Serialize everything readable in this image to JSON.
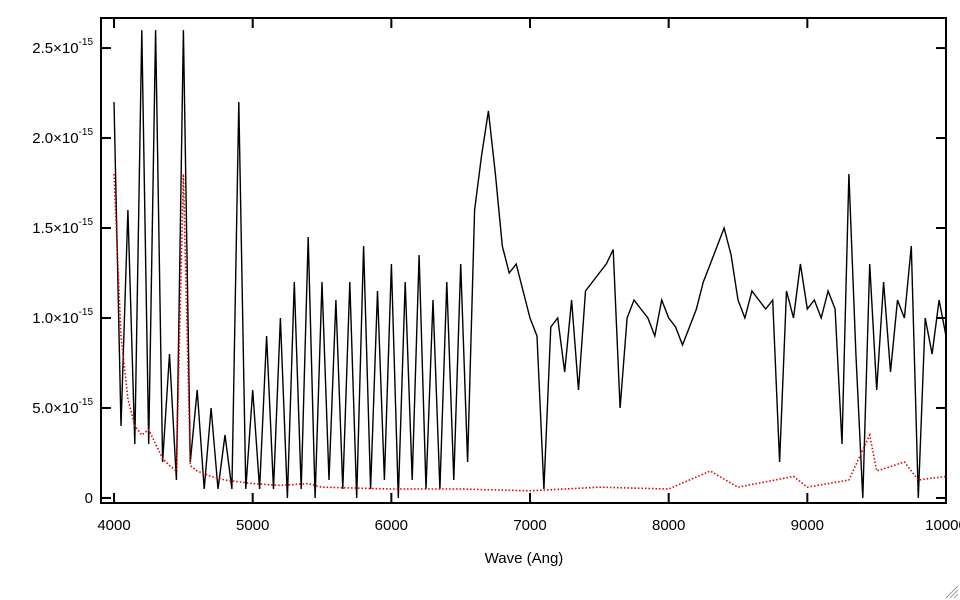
{
  "chart_data": {
    "type": "line",
    "xlabel": "Wave (Ang)",
    "xlim": [
      3906,
      10000
    ],
    "xticks": [
      4000,
      5000,
      6000,
      7000,
      8000,
      9000,
      10000
    ],
    "ylim": [
      -2.8e-17,
      2.667e-15
    ],
    "yticks": [
      0,
      {
        "value": 5e-16,
        "label": "5.0×10",
        "exponent": "-15"
      },
      {
        "value": 1e-15,
        "label": "1.0×10",
        "exponent": "-15"
      },
      {
        "value": 1.5e-15,
        "label": "1.5×10",
        "exponent": "-15"
      },
      {
        "value": 2e-15,
        "label": "2.0×10",
        "exponent": "-15"
      },
      {
        "value": 2.5e-15,
        "label": "2.5×10",
        "exponent": "-15"
      }
    ],
    "series": [
      {
        "color": "#000000",
        "linestyle": "solid",
        "x": [
          4000,
          4050,
          4100,
          4150,
          4200,
          4250,
          4300,
          4350,
          4400,
          4450,
          4500,
          4550,
          4600,
          4650,
          4700,
          4750,
          4800,
          4850,
          4900,
          4950,
          5000,
          5050,
          5100,
          5150,
          5200,
          5250,
          5300,
          5350,
          5400,
          5450,
          5500,
          5550,
          5600,
          5650,
          5700,
          5750,
          5800,
          5850,
          5900,
          5950,
          6000,
          6050,
          6100,
          6150,
          6200,
          6250,
          6300,
          6350,
          6400,
          6450,
          6500,
          6550,
          6600,
          6650,
          6700,
          6750,
          6800,
          6850,
          6900,
          6950,
          7000,
          7050,
          7100,
          7150,
          7200,
          7250,
          7300,
          7350,
          7400,
          7450,
          7500,
          7550,
          7600,
          7650,
          7700,
          7750,
          7800,
          7850,
          7900,
          7950,
          8000,
          8050,
          8100,
          8150,
          8200,
          8250,
          8300,
          8350,
          8400,
          8450,
          8500,
          8550,
          8600,
          8650,
          8700,
          8750,
          8800,
          8850,
          8900,
          8950,
          9000,
          9050,
          9100,
          9150,
          9200,
          9250,
          9300,
          9350,
          9400,
          9450,
          9500,
          9550,
          9600,
          9650,
          9700,
          9750,
          9800,
          9850,
          9900,
          9950,
          10000
        ],
        "values": [
          2.2e-15,
          4e-16,
          1.6e-15,
          3e-16,
          2.6e-15,
          3e-16,
          2.6e-15,
          2e-16,
          8e-16,
          1e-16,
          2.6e-15,
          2e-16,
          6e-16,
          5e-17,
          5e-16,
          5e-17,
          3.5e-16,
          5e-17,
          2.2e-15,
          5e-17,
          6e-16,
          5e-17,
          9e-16,
          5e-17,
          1e-15,
          0.0,
          1.2e-15,
          5e-17,
          1.45e-15,
          0.0,
          1.2e-15,
          1e-16,
          1.1e-15,
          5e-17,
          1.2e-15,
          0.0,
          1.4e-15,
          5e-17,
          1.15e-15,
          1e-16,
          1.3e-15,
          0.0,
          1.2e-15,
          1e-16,
          1.35e-15,
          5e-17,
          1.1e-15,
          5e-17,
          1.2e-15,
          1e-16,
          1.3e-15,
          2e-16,
          1.6e-15,
          1.9e-15,
          2.15e-15,
          1.8e-15,
          1.4e-15,
          1.25e-15,
          1.3e-15,
          1.15e-15,
          1e-15,
          9e-16,
          5e-17,
          9.5e-16,
          1e-15,
          7e-16,
          1.1e-15,
          6e-16,
          1.15e-15,
          1.2e-15,
          1.25e-15,
          1.3e-15,
          1.38e-15,
          5e-16,
          1e-15,
          1.1e-15,
          1.05e-15,
          1e-15,
          9e-16,
          1.1e-15,
          1e-15,
          9.5e-16,
          8.5e-16,
          9.5e-16,
          1.05e-15,
          1.2e-15,
          1.3e-15,
          1.4e-15,
          1.5e-15,
          1.35e-15,
          1.1e-15,
          1e-15,
          1.15e-15,
          1.1e-15,
          1.05e-15,
          1.1e-15,
          2e-16,
          1.15e-15,
          1e-15,
          1.3e-15,
          1.05e-15,
          1.1e-15,
          1e-15,
          1.15e-15,
          1.05e-15,
          3e-16,
          1.8e-15,
          8e-16,
          0.0,
          1.3e-15,
          6e-16,
          1.2e-15,
          7e-16,
          1.1e-15,
          1e-15,
          1.4e-15,
          0.0,
          1e-15,
          8e-16,
          1.1e-15,
          9e-16
        ]
      },
      {
        "color": "#e00000",
        "linestyle": "dotted",
        "x": [
          4000,
          4050,
          4100,
          4150,
          4200,
          4250,
          4300,
          4350,
          4400,
          4450,
          4500,
          4550,
          4600,
          4700,
          4800,
          5000,
          5200,
          5400,
          5500,
          6000,
          6500,
          7000,
          7500,
          8000,
          8300,
          8500,
          8900,
          9000,
          9300,
          9450,
          9500,
          9700,
          9800,
          10000
        ],
        "values": [
          1.8e-15,
          9e-16,
          5.5e-16,
          4e-16,
          3.5e-16,
          3.8e-16,
          3e-16,
          2.2e-16,
          1.8e-16,
          1.5e-16,
          1.8e-15,
          1.8e-16,
          1.5e-16,
          1.2e-16,
          1e-16,
          8e-17,
          7e-17,
          8e-17,
          6e-17,
          5e-17,
          5e-17,
          4e-17,
          6e-17,
          5e-17,
          1.5e-16,
          6e-17,
          1.2e-16,
          6e-17,
          1e-16,
          3.5e-16,
          1.5e-16,
          2e-16,
          1e-16,
          1.2e-16
        ]
      }
    ]
  }
}
